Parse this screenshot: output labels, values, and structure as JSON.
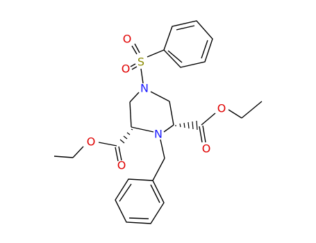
{
  "atoms": [
    {
      "label": "O"
    },
    {
      "label": "S"
    },
    {
      "label": "O"
    },
    {
      "label": "N"
    },
    {
      "label": "N"
    },
    {
      "label": "O"
    },
    {
      "label": "O"
    },
    {
      "label": "O"
    },
    {
      "label": "O"
    }
  ]
}
